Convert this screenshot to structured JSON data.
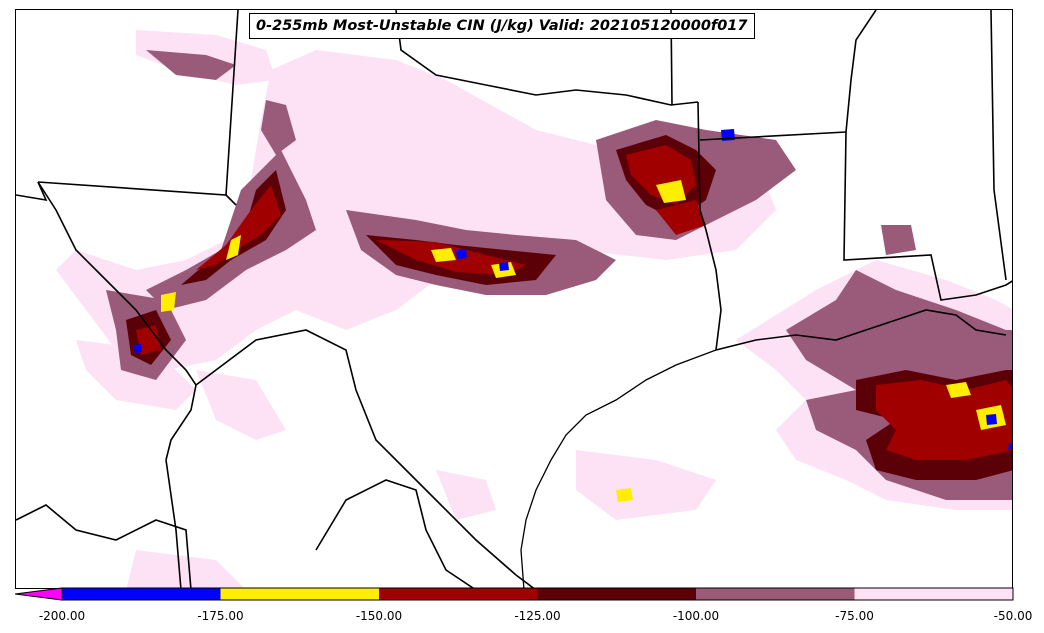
{
  "title": "0-255mb Most-Unstable CIN (J/kg) Valid: 202105120000f017",
  "colorbar": {
    "tick_labels": [
      "-200.00",
      "-175.00",
      "-150.00",
      "-125.00",
      "-100.00",
      "-75.00",
      "-50.00"
    ],
    "bins": [
      {
        "range": [
          -200,
          -175
        ],
        "color": "#0000ff"
      },
      {
        "range": [
          -175,
          -150
        ],
        "color": "#ffee00"
      },
      {
        "range": [
          -150,
          -125
        ],
        "color": "#a00000"
      },
      {
        "range": [
          -125,
          -100
        ],
        "color": "#5c0008"
      },
      {
        "range": [
          -100,
          -75
        ],
        "color": "#9a5a7a"
      },
      {
        "range": [
          -75,
          -50
        ],
        "color": "#fde2f5"
      }
    ],
    "under_color": "#ff00ff",
    "extend": "min"
  },
  "colors": {
    "background": "#ffffff",
    "borders": "#000000"
  }
}
